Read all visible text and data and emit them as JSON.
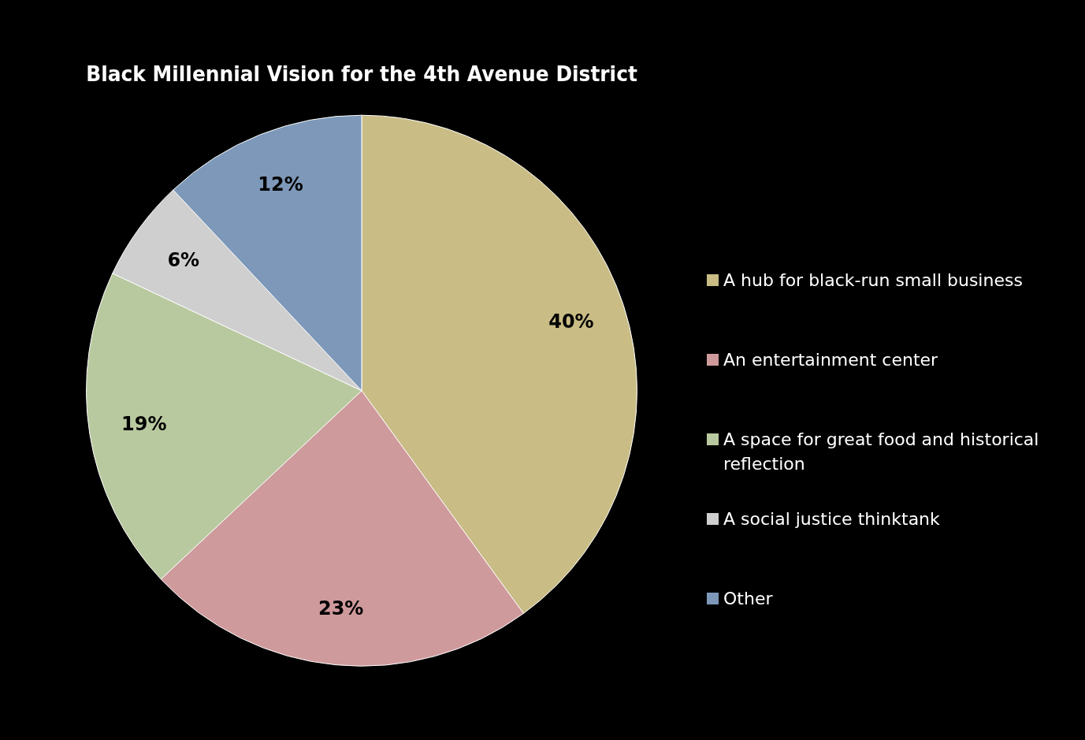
{
  "chart_data": {
    "type": "pie",
    "title": "Black Millennial Vision for the 4th Avenue District",
    "categories": [
      "A hub for black-run small business",
      "An entertainment center",
      "A space for great food and historical reflection",
      "A social justice thinktank",
      "Other"
    ],
    "values": [
      40,
      23,
      19,
      6,
      12
    ],
    "value_labels": [
      "40%",
      "23%",
      "19%",
      "6%",
      "12%"
    ],
    "colors": [
      "#c9bc85",
      "#cf9a9c",
      "#b9c99f",
      "#cfcfcf",
      "#7d98b8"
    ],
    "legend": "right"
  }
}
